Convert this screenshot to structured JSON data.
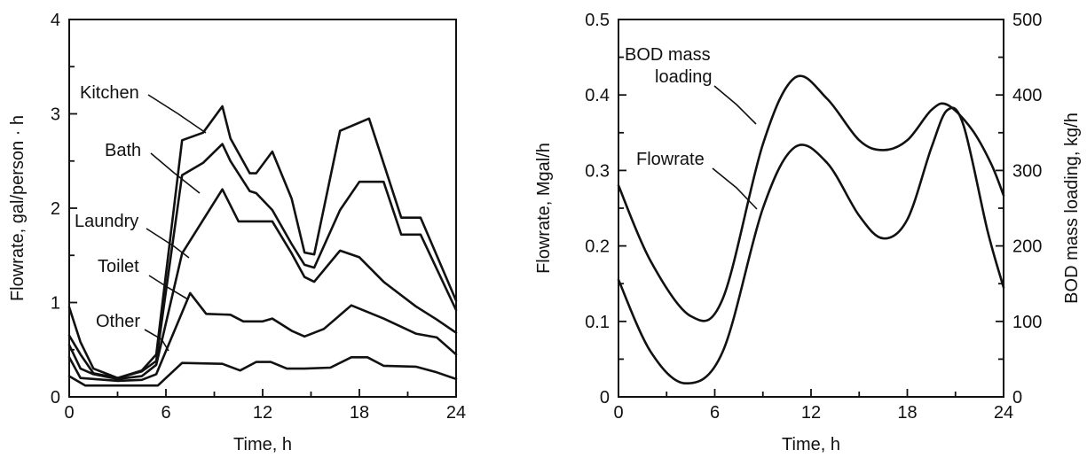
{
  "chart_data": [
    {
      "type": "line",
      "xlabel": "Time, h",
      "ylabel": "Flowrate, gal/person · h",
      "xlim": [
        0,
        24
      ],
      "ylim": [
        0,
        4
      ],
      "xticks": [
        "0",
        "6",
        "12",
        "18",
        "24"
      ],
      "yticks": [
        "0",
        "1",
        "2",
        "3",
        "4"
      ],
      "grid": false,
      "legend": "none",
      "series": [
        {
          "name": "Kitchen",
          "x": [
            0,
            0.7,
            1.5,
            3,
            4.5,
            5.4,
            7,
            8.3,
            9.5,
            10,
            11.2,
            11.6,
            12.6,
            13.8,
            14.6,
            15.2,
            16.8,
            18.6,
            20.6,
            21.8,
            24
          ],
          "y": [
            0.95,
            0.58,
            0.3,
            0.2,
            0.28,
            0.45,
            2.72,
            2.8,
            3.08,
            2.74,
            2.37,
            2.37,
            2.6,
            2.1,
            1.53,
            1.51,
            2.82,
            2.95,
            1.9,
            1.9,
            1.02
          ]
        },
        {
          "name": "Bath",
          "x": [
            0,
            0.7,
            1.5,
            3,
            4.5,
            5.4,
            7,
            8.3,
            9.5,
            10,
            11.2,
            11.6,
            12.6,
            13.8,
            14.6,
            15.2,
            16.8,
            18,
            19.5,
            20.6,
            21.8,
            24
          ],
          "y": [
            0.65,
            0.45,
            0.25,
            0.2,
            0.27,
            0.38,
            2.35,
            2.48,
            2.68,
            2.5,
            2.18,
            2.16,
            1.98,
            1.62,
            1.4,
            1.37,
            1.98,
            2.28,
            2.28,
            1.72,
            1.72,
            0.92
          ]
        },
        {
          "name": "Laundry",
          "x": [
            0,
            0.7,
            1.5,
            3,
            4.5,
            5.4,
            7,
            9.5,
            10.5,
            11.6,
            12.6,
            13.8,
            14.6,
            15.2,
            16.8,
            18,
            19.5,
            21.5,
            22.8,
            24
          ],
          "y": [
            0.55,
            0.3,
            0.24,
            0.19,
            0.22,
            0.34,
            1.52,
            2.2,
            1.86,
            1.86,
            1.86,
            1.52,
            1.27,
            1.22,
            1.55,
            1.48,
            1.22,
            0.96,
            0.82,
            0.68
          ]
        },
        {
          "name": "Toilet",
          "x": [
            0,
            0.7,
            1.5,
            3,
            4.5,
            5.4,
            7.5,
            8.5,
            10,
            10.8,
            12,
            12.6,
            13.8,
            14.6,
            15.8,
            17.5,
            19.5,
            21.5,
            22.8,
            24
          ],
          "y": [
            0.42,
            0.2,
            0.19,
            0.17,
            0.18,
            0.24,
            1.1,
            0.88,
            0.87,
            0.8,
            0.8,
            0.83,
            0.7,
            0.64,
            0.72,
            0.97,
            0.83,
            0.67,
            0.63,
            0.45
          ]
        },
        {
          "name": "Other",
          "x": [
            0,
            1,
            3,
            5.5,
            7,
            9.5,
            10.6,
            11.6,
            12.5,
            13.5,
            14.6,
            16.2,
            17.5,
            18.5,
            19.5,
            21.5,
            22.8,
            24
          ],
          "y": [
            0.22,
            0.12,
            0.12,
            0.12,
            0.36,
            0.35,
            0.28,
            0.37,
            0.37,
            0.3,
            0.3,
            0.31,
            0.42,
            0.42,
            0.33,
            0.32,
            0.26,
            0.19
          ]
        }
      ],
      "annotations": [
        "Kitchen",
        "Bath",
        "Laundry",
        "Toilet",
        "Other"
      ]
    },
    {
      "type": "line",
      "xlabel": "Time, h",
      "ylabel": "Flowrate, Mgal/h",
      "y2label": "BOD mass loading, kg/h",
      "xlim": [
        0,
        24
      ],
      "ylim": [
        0,
        0.5
      ],
      "y2lim": [
        0,
        500
      ],
      "xticks": [
        "0",
        "6",
        "12",
        "18",
        "24"
      ],
      "yticks": [
        "0",
        "0.1",
        "0.2",
        "0.3",
        "0.4",
        "0.5"
      ],
      "y2ticks": [
        "0",
        "100",
        "200",
        "300",
        "400",
        "500"
      ],
      "grid": false,
      "legend": "none",
      "series": [
        {
          "name": "BOD mass loading",
          "axis": "right",
          "x": [
            0,
            2,
            4.5,
            6.5,
            9,
            11,
            13,
            15,
            16.5,
            18,
            19.5,
            20.5,
            22,
            23.2,
            24
          ],
          "y": [
            280,
            180,
            107,
            130,
            335,
            423,
            395,
            340,
            327,
            340,
            380,
            387,
            355,
            310,
            267
          ]
        },
        {
          "name": "Flowrate",
          "axis": "left",
          "x": [
            0,
            2,
            4.2,
            6.5,
            9,
            11,
            13,
            15,
            16.5,
            18,
            19.5,
            20.5,
            21.5,
            23,
            24
          ],
          "y": [
            0.155,
            0.06,
            0.018,
            0.06,
            0.25,
            0.331,
            0.31,
            0.24,
            0.21,
            0.235,
            0.33,
            0.38,
            0.36,
            0.22,
            0.145
          ]
        }
      ],
      "annotations": [
        "BOD mass",
        "loading",
        "Flowrate"
      ]
    }
  ]
}
